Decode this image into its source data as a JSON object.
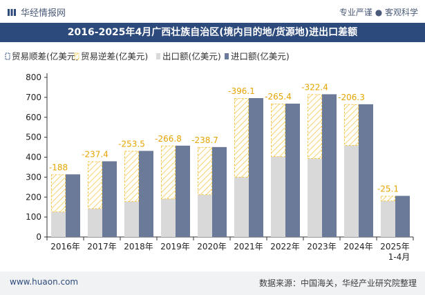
{
  "header": {
    "brand": "华经情报网",
    "tagline": "专业严谨 ● 客观科学"
  },
  "footer": {
    "website": "www.huaon.com",
    "source": "数据来源：中国海关，华经产业研究院整理"
  },
  "colors": {
    "import": "#6b7a99",
    "export": "#d9d9d9",
    "deficit_stroke": "#f3c74e",
    "title_bg": "#2c4a7c"
  },
  "chart_data": {
    "type": "bar",
    "title": "2016-2025年4月广西壮族自治区(境内目的地/货源地)进出口差额",
    "categories": [
      "2016年",
      "2017年",
      "2018年",
      "2019年",
      "2020年",
      "2021年",
      "2022年",
      "2023年",
      "2024年",
      "2025年\n1-4月"
    ],
    "ylim": [
      0,
      800
    ],
    "yticks": [
      0,
      100,
      200,
      300,
      400,
      500,
      600,
      700,
      800
    ],
    "legend_position": "top-left",
    "grid": false,
    "series": [
      {
        "name": "贸易顺差(亿美元)",
        "values": [
          null,
          null,
          null,
          null,
          null,
          null,
          null,
          null,
          null,
          null
        ]
      },
      {
        "name": "贸易逆差(亿美元)",
        "values": [
          -188,
          -237.4,
          -253.5,
          -266.8,
          -238.7,
          -396.1,
          -265.4,
          -322.4,
          -206.3,
          -25.1
        ]
      },
      {
        "name": "出口额(亿美元)",
        "values": [
          126,
          142,
          178,
          191,
          212,
          300,
          403,
          393,
          459,
          181
        ]
      },
      {
        "name": "进口额(亿美元)",
        "values": [
          314,
          379.4,
          431.5,
          457.8,
          450.7,
          696.1,
          668.4,
          715.4,
          665.3,
          206.1
        ]
      }
    ],
    "data_labels": [
      "-188",
      "-237.4",
      "-253.5",
      "-266.8",
      "-238.7",
      "-396.1",
      "-265.4",
      "-322.4",
      "-206.3",
      "-25.1"
    ]
  }
}
